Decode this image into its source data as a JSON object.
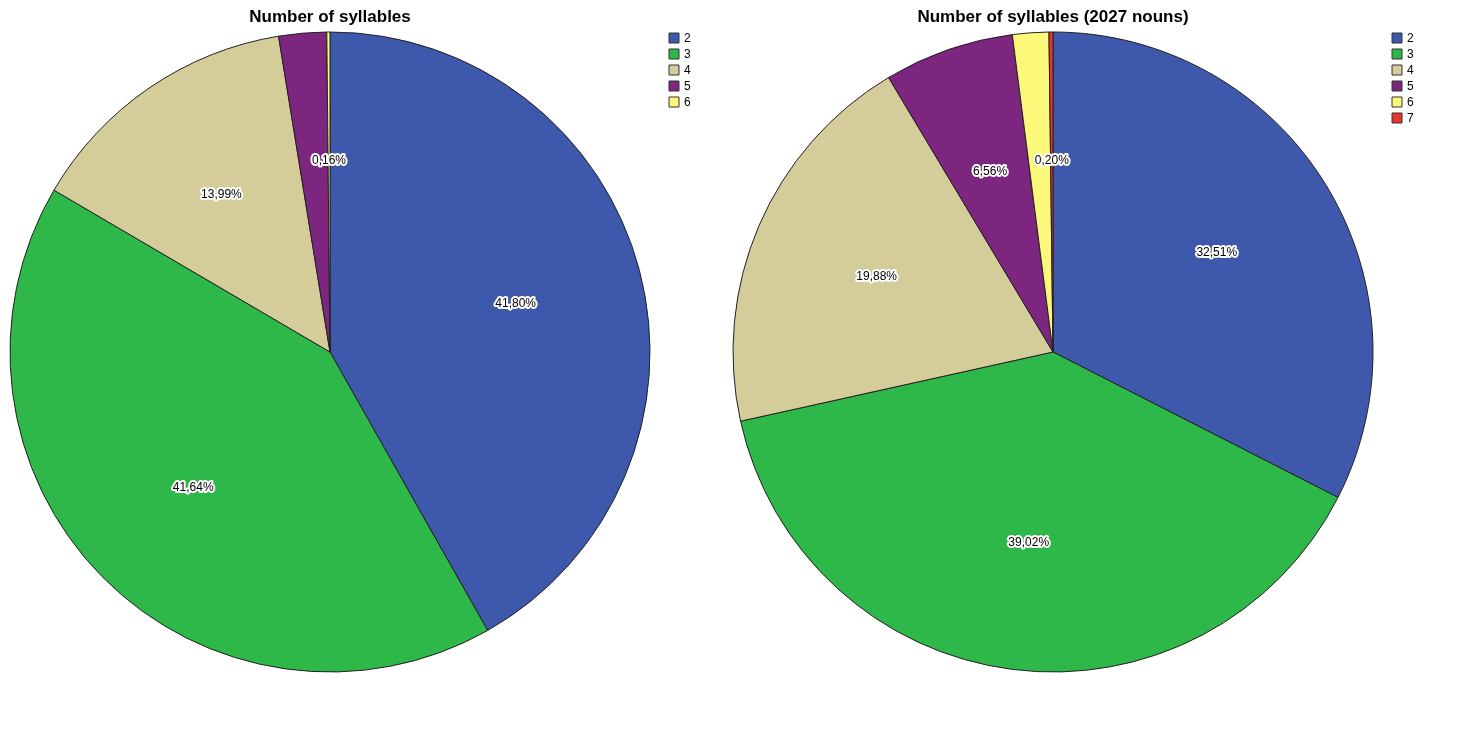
{
  "chart_data": [
    {
      "type": "pie",
      "title": "Number of syllables",
      "categories": [
        "2",
        "3",
        "4",
        "5",
        "6"
      ],
      "values": [
        41.8,
        41.64,
        13.99,
        2.41,
        0.16
      ],
      "value_labels": [
        "41,80%",
        "41,64%",
        "13,99%",
        null,
        "0,16%"
      ],
      "colors": [
        "#3e58ac",
        "#2fb84a",
        "#d4cc99",
        "#7d2680",
        "#fbf87a"
      ],
      "legend": "top right"
    },
    {
      "type": "pie",
      "title": "Number of syllables (2027 nouns)",
      "categories": [
        "2",
        "3",
        "4",
        "5",
        "6",
        "7"
      ],
      "values": [
        32.51,
        39.02,
        19.88,
        6.56,
        1.83,
        0.2
      ],
      "value_labels": [
        "32,51%",
        "39,02%",
        "19,88%",
        "6,56%",
        null,
        "0,20%"
      ],
      "colors": [
        "#3e58ac",
        "#2fb84a",
        "#d4cc99",
        "#7d2680",
        "#fbf87a",
        "#e8352a"
      ],
      "legend": "top right"
    }
  ]
}
